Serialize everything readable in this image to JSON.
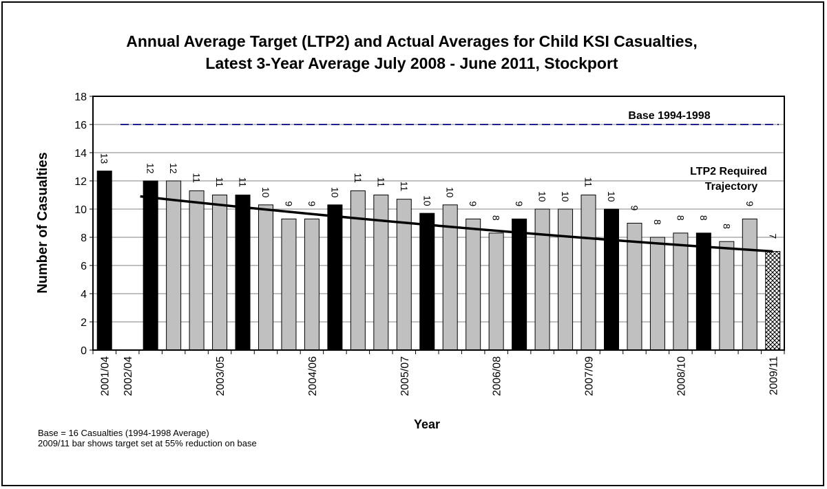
{
  "chart_data": {
    "type": "bar",
    "title": "Annual Average Target (LTP2) and Actual Averages for Child KSI Casualties,",
    "subtitle": "Latest 3-Year Average July 2008 - June 2011, Stockport",
    "xlabel": "Year",
    "ylabel": "Number of Casualties",
    "ylim": [
      0,
      18
    ],
    "yticks": [
      "0",
      "2",
      "4",
      "6",
      "8",
      "10",
      "12",
      "14",
      "16",
      "18"
    ],
    "grid": true,
    "categories": [
      "2001/04",
      "2002/04",
      "",
      "",
      "",
      "2003/05",
      "",
      "",
      "",
      "2004/06",
      "",
      "",
      "",
      "2005/07",
      "",
      "",
      "",
      "2006/08",
      "",
      "",
      "",
      "2007/09",
      "",
      "",
      "",
      "2008/10",
      "",
      "",
      "",
      "2009/11"
    ],
    "values": [
      12.7,
      null,
      12.0,
      12.0,
      11.3,
      11.0,
      11.0,
      10.3,
      9.3,
      9.3,
      10.3,
      11.3,
      11.0,
      10.7,
      9.7,
      10.3,
      9.3,
      8.3,
      9.3,
      10.0,
      10.0,
      11.0,
      10.0,
      9.0,
      8.0,
      8.3,
      8.3,
      7.7,
      9.3,
      7.0
    ],
    "data_labels": [
      "13",
      "",
      "12",
      "12",
      "11",
      "11",
      "11",
      "10",
      "9",
      "9",
      "10",
      "11",
      "11",
      "11",
      "10",
      "10",
      "9",
      "8",
      "9",
      "10",
      "10",
      "11",
      "10",
      "9",
      "8",
      "8",
      "8",
      "8",
      "9",
      "7"
    ],
    "bar_styles": [
      "black",
      "none",
      "black",
      "gray",
      "gray",
      "gray",
      "black",
      "gray",
      "gray",
      "gray",
      "black",
      "gray",
      "gray",
      "gray",
      "black",
      "gray",
      "gray",
      "gray",
      "black",
      "gray",
      "gray",
      "gray",
      "black",
      "gray",
      "gray",
      "gray",
      "black",
      "gray",
      "gray",
      "hatched"
    ],
    "base_line": {
      "value": 16,
      "label": "Base 1994-1998",
      "color": "#1f1f8f"
    },
    "trajectory": {
      "label_line1": "LTP2 Required",
      "label_line2": "Trajectory",
      "start_index": 2,
      "end_index": 29,
      "start_value": 10.9,
      "end_value": 7.0
    }
  },
  "notes": [
    "Base = 16 Casualties (1994-1998 Average)",
    "2009/11 bar shows target set at 55% reduction on base"
  ]
}
